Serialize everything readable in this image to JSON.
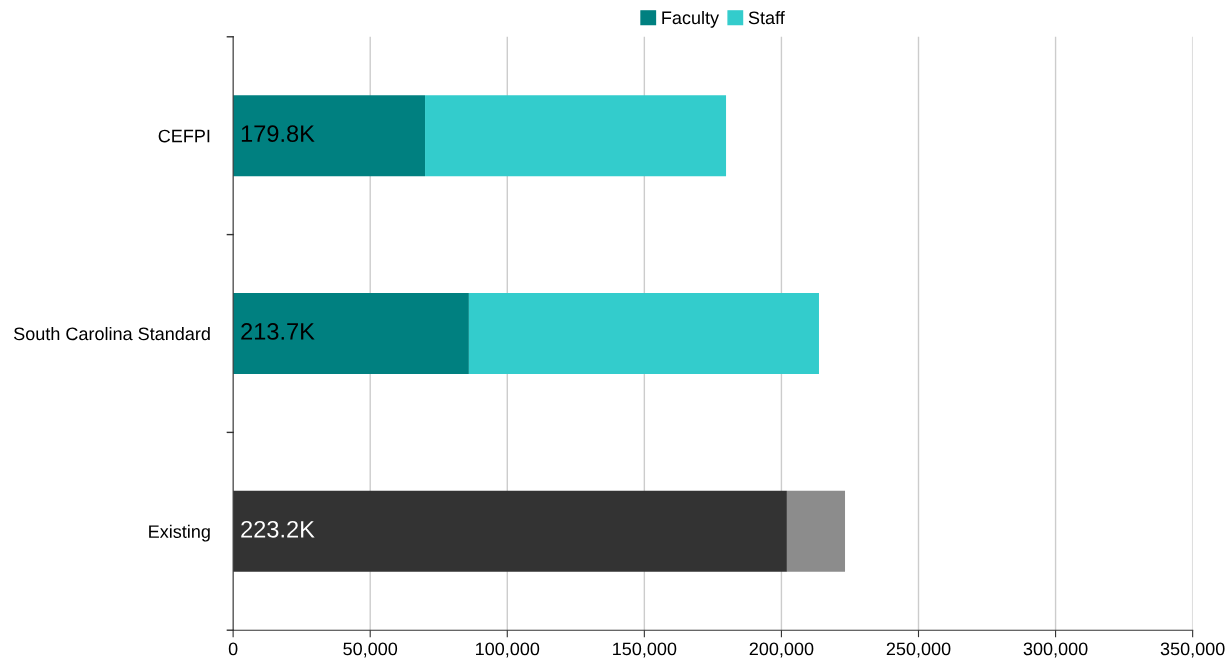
{
  "chart_data": {
    "type": "bar",
    "orientation": "horizontal",
    "stacked": true,
    "categories": [
      "CEFPI",
      "South Carolina Standard",
      "Existing"
    ],
    "series": [
      {
        "name": "Faculty",
        "color": "#008080",
        "values": [
          70000,
          86000,
          null
        ]
      },
      {
        "name": "Staff",
        "color": "#33cccc",
        "values": [
          109800,
          127700,
          null
        ]
      },
      {
        "color": "#333333",
        "values": [
          null,
          null,
          202000
        ]
      },
      {
        "color": "#8c8c8c",
        "values": [
          null,
          null,
          21200
        ]
      }
    ],
    "totals": [
      "179.8K",
      "213.7K",
      "223.2K"
    ],
    "xlim": [
      0,
      350000
    ],
    "xticks": [
      0,
      {
        "value": 50000,
        "label": "50,000"
      },
      {
        "value": 100000,
        "label": "100,000"
      },
      {
        "value": 150000,
        "label": "150,000"
      },
      {
        "value": 200000,
        "label": "200,000"
      },
      {
        "value": 250000,
        "label": "250,000"
      },
      {
        "value": 300000,
        "label": "300,000"
      },
      {
        "value": 350000,
        "label": "350,000"
      }
    ],
    "grid": "x",
    "legend": "top"
  }
}
